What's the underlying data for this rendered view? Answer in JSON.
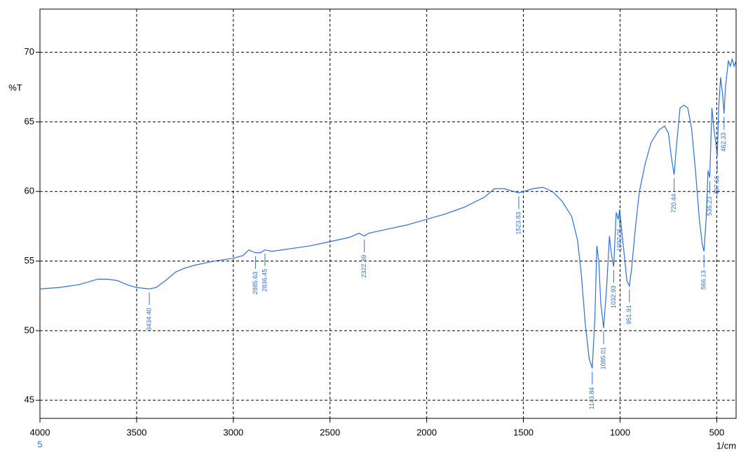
{
  "chart_data": {
    "type": "line",
    "x_label": "1/cm",
    "y_label": "%T",
    "x_sublabel": "5",
    "xlim": [
      4000,
      400
    ],
    "ylim": [
      43.7,
      73.1
    ],
    "xticks": [
      4000,
      3500,
      3000,
      2500,
      2000,
      1500,
      1000,
      500
    ],
    "yticks": [
      45,
      50,
      55,
      60,
      65,
      70
    ],
    "grid": true,
    "x": [
      4000,
      3900,
      3800,
      3750,
      3700,
      3650,
      3600,
      3550,
      3500,
      3434.4,
      3400,
      3350,
      3300,
      3250,
      3200,
      3100,
      3000,
      2950,
      2920,
      2885.63,
      2860,
      2836.45,
      2800,
      2700,
      2600,
      2500,
      2400,
      2350,
      2322.39,
      2300,
      2200,
      2100,
      2000,
      1900,
      1800,
      1700,
      1650,
      1600,
      1550,
      1523.83,
      1450,
      1400,
      1350,
      1300,
      1250,
      1220,
      1200,
      1180,
      1160,
      1143.84,
      1130,
      1120,
      1110,
      1100,
      1085.01,
      1070,
      1055,
      1045,
      1032.93,
      1020,
      1010,
      1002.06,
      990,
      975,
      965,
      951.91,
      940,
      920,
      900,
      870,
      840,
      800,
      770,
      750,
      735,
      720.44,
      710,
      690,
      670,
      650,
      630,
      610,
      590,
      575,
      566.13,
      555,
      545,
      536.23,
      525,
      515,
      505,
      497.66,
      490,
      480,
      470,
      462.33,
      455,
      440,
      430,
      420,
      410,
      400
    ],
    "series": [
      {
        "color": "#2e6fdc",
        "values": [
          53.0,
          53.1,
          53.3,
          53.5,
          53.7,
          53.7,
          53.6,
          53.3,
          53.1,
          53.0,
          53.1,
          53.6,
          54.2,
          54.5,
          54.7,
          55.0,
          55.2,
          55.4,
          55.8,
          55.6,
          55.6,
          55.8,
          55.7,
          55.9,
          56.1,
          56.4,
          56.7,
          57.0,
          56.8,
          57.0,
          57.3,
          57.6,
          58.0,
          58.4,
          58.9,
          59.6,
          60.2,
          60.2,
          60.0,
          59.9,
          60.2,
          60.3,
          60.0,
          59.3,
          58.2,
          56.5,
          54.0,
          50.5,
          48.0,
          47.3,
          51.0,
          56.1,
          55.0,
          52.0,
          50.2,
          53.0,
          56.8,
          55.5,
          54.6,
          58.5,
          58.0,
          58.7,
          57.0,
          55.0,
          53.6,
          53.2,
          54.5,
          57.5,
          60.0,
          62.0,
          63.5,
          64.4,
          64.7,
          64.2,
          62.5,
          61.2,
          63.0,
          66.0,
          66.2,
          66.0,
          64.5,
          61.5,
          58.0,
          56.2,
          55.7,
          58.0,
          61.5,
          61.0,
          66.0,
          64.5,
          63.5,
          62.5,
          66.0,
          68.2,
          67.0,
          65.6,
          67.5,
          69.4,
          69.0,
          69.5,
          69.0,
          69.4
        ]
      }
    ],
    "peaks": [
      {
        "x": 3434.4,
        "y": 53.0,
        "label": "3434.40"
      },
      {
        "x": 2885.63,
        "y": 55.6,
        "label": "2885.63"
      },
      {
        "x": 2836.45,
        "y": 55.8,
        "label": "2836.45"
      },
      {
        "x": 2322.39,
        "y": 56.8,
        "label": "2322.39"
      },
      {
        "x": 1523.83,
        "y": 59.9,
        "label": "1523.83"
      },
      {
        "x": 1143.84,
        "y": 47.3,
        "label": "1143.84"
      },
      {
        "x": 1085.01,
        "y": 50.2,
        "label": "1085.01"
      },
      {
        "x": 1032.93,
        "y": 54.6,
        "label": "1032.93"
      },
      {
        "x": 1002.06,
        "y": 58.7,
        "label": "1002.06"
      },
      {
        "x": 951.91,
        "y": 53.2,
        "label": "951.91"
      },
      {
        "x": 720.44,
        "y": 61.2,
        "label": "720.44"
      },
      {
        "x": 566.13,
        "y": 55.7,
        "label": "566.13"
      },
      {
        "x": 536.23,
        "y": 61.0,
        "label": "536.23"
      },
      {
        "x": 497.66,
        "y": 62.5,
        "label": "497.66"
      },
      {
        "x": 462.33,
        "y": 65.6,
        "label": "462.33"
      }
    ]
  }
}
